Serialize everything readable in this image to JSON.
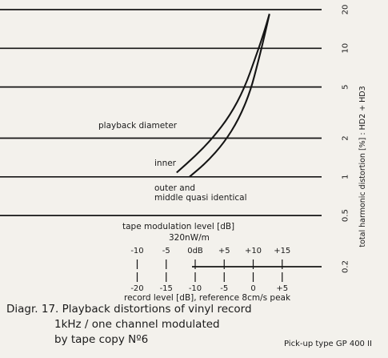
{
  "chart_data": {
    "type": "line",
    "y_axis": {
      "label": "total harmonic distortion [%] : HD2 + HD3",
      "scale": "log",
      "ticks": [
        0.2,
        0.5,
        1,
        2,
        5,
        10,
        20
      ],
      "tick_labels": [
        "0.2",
        "0.5",
        "1",
        "2",
        "5",
        "10",
        "20"
      ],
      "range": [
        0.2,
        20
      ]
    },
    "x_axis_primary": {
      "label": "tape modulation level [dB]",
      "sublabel": "320nW/m",
      "ticks": [
        -10,
        -5,
        0,
        5,
        10,
        15
      ],
      "tick_labels": [
        "-10",
        "-5",
        "0dB",
        "+5",
        "+10",
        "+15"
      ]
    },
    "x_axis_secondary": {
      "label": "record level [dB], reference 8cm/s peak",
      "ticks": [
        -20,
        -15,
        -10,
        -5,
        0,
        5
      ],
      "tick_labels": [
        "-20",
        "-15",
        "-10",
        "-5",
        "0",
        "+5"
      ],
      "offset_to_primary_db": 10
    },
    "series": [
      {
        "name": "inner",
        "points": [
          [
            -3.2,
            1.08
          ],
          [
            0.0,
            1.45
          ],
          [
            3.0,
            2.0
          ],
          [
            6.0,
            3.0
          ],
          [
            8.5,
            4.9
          ],
          [
            10.4,
            8.5
          ],
          [
            11.8,
            13.0
          ],
          [
            12.8,
            18.5
          ]
        ]
      },
      {
        "name": "outer and middle quasi identical",
        "points": [
          [
            -1.0,
            1.0
          ],
          [
            2.0,
            1.3
          ],
          [
            5.0,
            1.85
          ],
          [
            7.5,
            2.8
          ],
          [
            9.5,
            4.6
          ],
          [
            10.9,
            8.0
          ],
          [
            12.0,
            12.8
          ],
          [
            12.8,
            18.5
          ]
        ]
      }
    ],
    "annotations": {
      "diameter": "playback diameter",
      "inner": "inner",
      "outer_1": "outer and",
      "outer_2": "middle quasi identical"
    },
    "grid": "horizontal at major y ticks"
  },
  "caption": {
    "line1": "Diagr. 17. Playback distortions of vinyl record",
    "line2": "1kHz / one channel modulated",
    "line3": "by tape copy  Nº6",
    "pickup": "Pick-up type  GP 400 II"
  }
}
